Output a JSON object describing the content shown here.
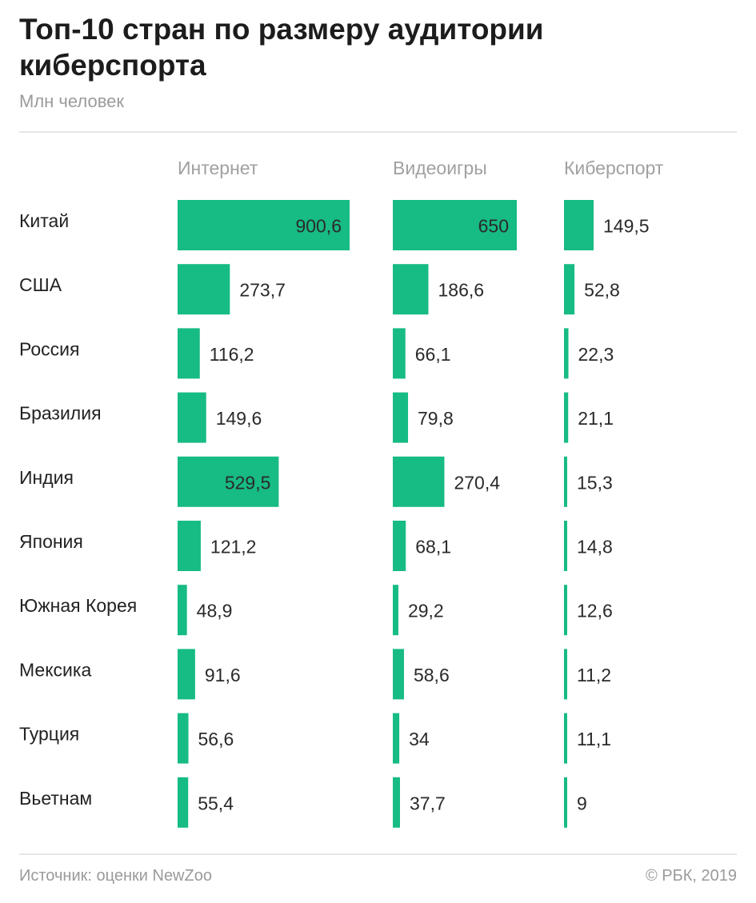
{
  "title": "Топ-10 стран по размеру аудитории киберспорта",
  "subtitle": "Млн человек",
  "footer": {
    "source": "Источник: оценки NewZoo",
    "copyright": "© РБК, 2019"
  },
  "colors": {
    "bar": "#17bb84",
    "text": "#222222",
    "muted": "#9b9b9b"
  },
  "chart_data": {
    "type": "bar",
    "orientation": "horizontal",
    "title": "Топ-10 стран по размеру аудитории киберспорта",
    "unit": "Млн человек",
    "categories": [
      "Китай",
      "США",
      "Россия",
      "Бразилия",
      "Индия",
      "Япония",
      "Южная Корея",
      "Мексика",
      "Турция",
      "Вьетнам"
    ],
    "series": [
      {
        "name": "Интернет",
        "values": [
          900.6,
          273.7,
          116.2,
          149.6,
          529.5,
          121.2,
          48.9,
          91.6,
          56.6,
          55.4
        ],
        "labels": [
          "900,6",
          "273,7",
          "116,2",
          "149,6",
          "529,5",
          "121,2",
          "48,9",
          "91,6",
          "56,6",
          "55,4"
        ]
      },
      {
        "name": "Видеоигры",
        "values": [
          650,
          186.6,
          66.1,
          79.8,
          270.4,
          68.1,
          29.2,
          58.6,
          34,
          37.7
        ],
        "labels": [
          "650",
          "186,6",
          "66,1",
          "79,8",
          "270,4",
          "68,1",
          "29,2",
          "58,6",
          "34",
          "37,7"
        ]
      },
      {
        "name": "Киберспорт",
        "values": [
          149.5,
          52.8,
          22.3,
          21.1,
          15.3,
          14.8,
          12.6,
          11.2,
          11.1,
          9
        ],
        "labels": [
          "149,5",
          "52,8",
          "22,3",
          "21,1",
          "15,3",
          "14,8",
          "12,6",
          "11,2",
          "11,1",
          "9"
        ]
      }
    ]
  }
}
